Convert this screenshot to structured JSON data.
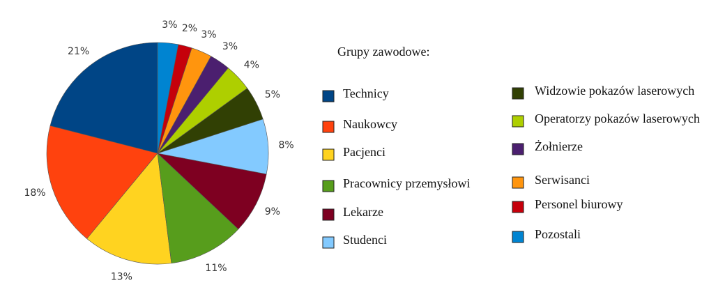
{
  "chart_data": {
    "type": "pie",
    "legend_title": "Grupy zawodowe:",
    "categories": [
      "Technicy",
      "Naukowcy",
      "Pacjenci",
      "Pracownicy  przemysłowi",
      "Lekarze",
      "Studenci",
      "Widzowie pokazów laserowych",
      "Operatorzy pokazów laserowych",
      "Żołnierze",
      "Serwisanci",
      "Personel biurowy",
      "Pozostali"
    ],
    "values": [
      21,
      18,
      13,
      11,
      9,
      8,
      5,
      4,
      3,
      3,
      2,
      3
    ],
    "value_labels": [
      "21%",
      "18%",
      "13%",
      "11%",
      "9%",
      "8%",
      "5%",
      "4%",
      "3%",
      "3%",
      "2%",
      "3%"
    ],
    "colors": [
      "#004586",
      "#ff420e",
      "#ffd320",
      "#579d1c",
      "#7e0021",
      "#83caff",
      "#314004",
      "#aecf00",
      "#4b1f6f",
      "#ff950e",
      "#c5000b",
      "#0084d1"
    ]
  }
}
